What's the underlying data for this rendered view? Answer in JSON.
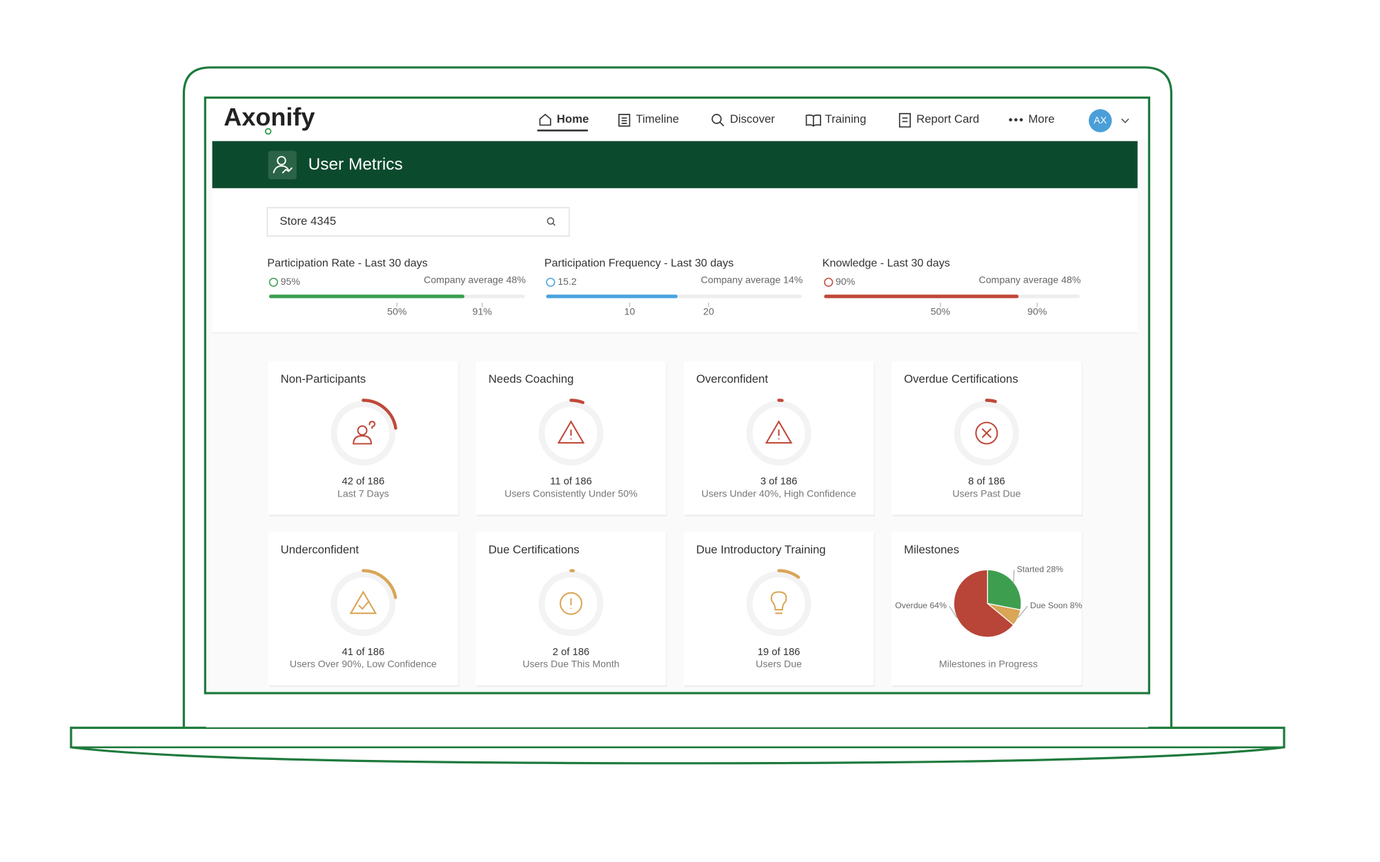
{
  "nav": {
    "logo": "Axonify",
    "items": [
      "Home",
      "Timeline",
      "Discover",
      "Training",
      "Report Card",
      "More"
    ],
    "avatar": "AX"
  },
  "header": {
    "title": "User Metrics"
  },
  "search": {
    "value": "Store 4345"
  },
  "metrics": [
    {
      "title": "Participation Rate - Last 30 days",
      "value": "95%",
      "company_average": "Company average 48%",
      "ticks": [
        "50%",
        "91%"
      ],
      "color": "#3a9e4f"
    },
    {
      "title": "Participation Frequency - Last 30 days",
      "value": "15.2",
      "company_average": "Company average 14%",
      "ticks": [
        "10",
        "20"
      ],
      "color": "#4aa3df"
    },
    {
      "title": "Knowledge - Last 30 days",
      "value": "90%",
      "company_average": "Company average 48%",
      "ticks": [
        "50%",
        "90%"
      ],
      "color": "#c0483a"
    }
  ],
  "cards": [
    {
      "title": "Non-Participants",
      "value": 42,
      "total": 186,
      "value_label": "42 of 186",
      "caption": "Last 7 Days",
      "color": "#c0483a"
    },
    {
      "title": "Needs Coaching",
      "value": 11,
      "total": 186,
      "value_label": "11 of 186",
      "caption": "Users Consistently Under 50%",
      "color": "#c0483a"
    },
    {
      "title": "Overconfident",
      "value": 3,
      "total": 186,
      "value_label": "3 of 186",
      "caption": "Users Under 40%, High Confidence",
      "color": "#c0483a"
    },
    {
      "title": "Overdue Certifications",
      "value": 8,
      "total": 186,
      "value_label": "8 of 186",
      "caption": "Users Past Due",
      "color": "#c0483a"
    },
    {
      "title": "Underconfident",
      "value": 41,
      "total": 186,
      "value_label": "41 of 186",
      "caption": "Users Over 90%, Low Confidence",
      "color": "#d9a557"
    },
    {
      "title": "Due Certifications",
      "value": 2,
      "total": 186,
      "value_label": "2 of 186",
      "caption": "Users Due This Month",
      "color": "#d9a557"
    },
    {
      "title": "Due Introductory Training",
      "value": 19,
      "total": 186,
      "value_label": "19 of 186",
      "caption": "Users Due",
      "color": "#d9a557"
    }
  ],
  "milestones": {
    "title": "Milestones",
    "type": "pie",
    "slices": [
      {
        "value": 28,
        "value_label": "Started 28%",
        "color": "#3e9e50"
      },
      {
        "value": 8,
        "value_label": "Due Soon 8%",
        "color": "#d9a557"
      },
      {
        "value": 64,
        "value_label": "Overdue 64%",
        "color": "#b84537"
      }
    ],
    "caption": "Milestones in Progress"
  }
}
